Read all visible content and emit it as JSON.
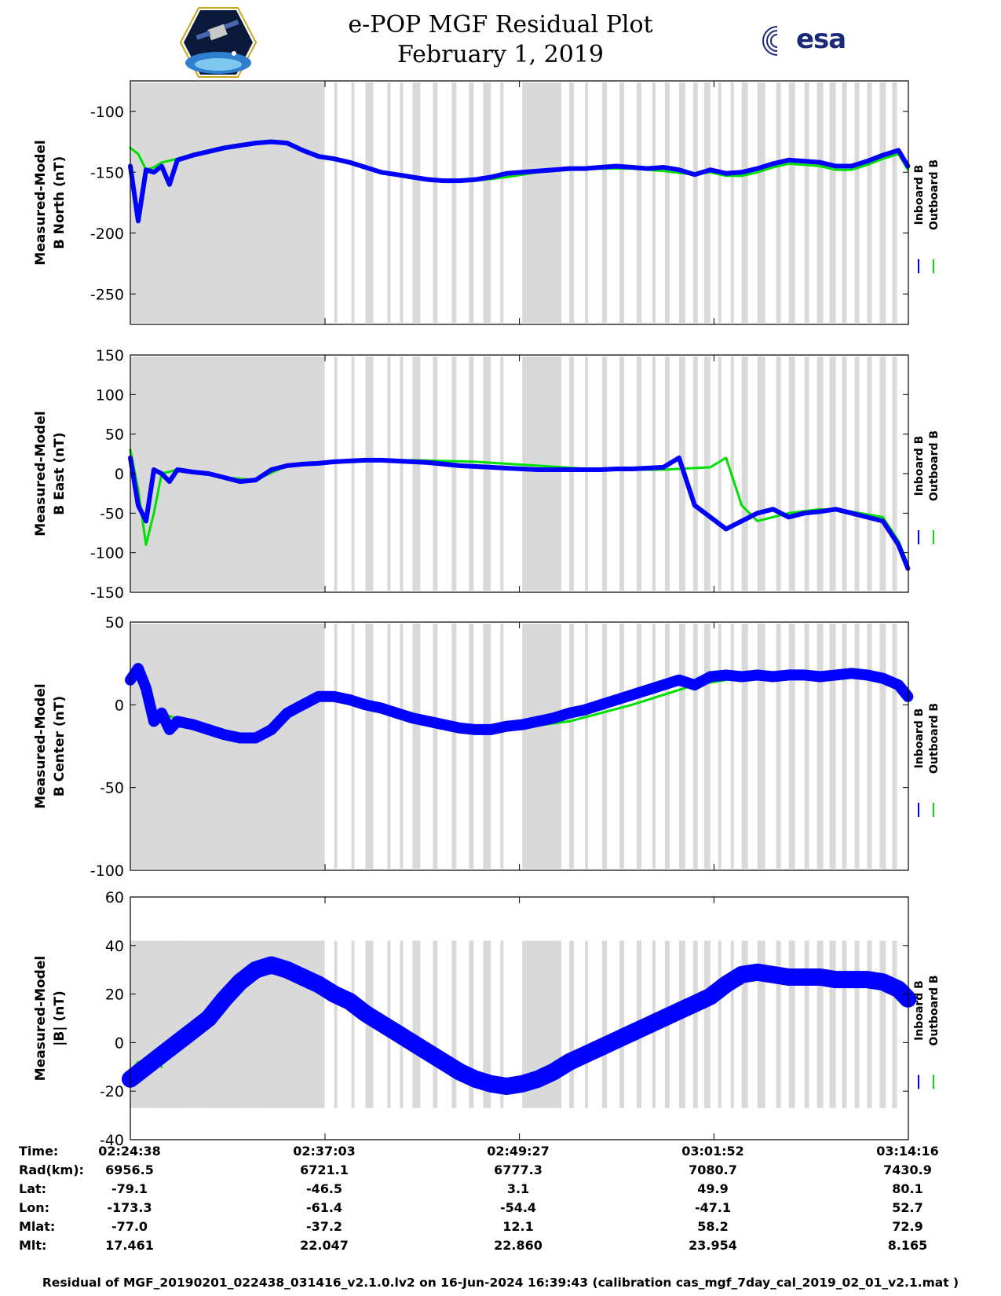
{
  "title": {
    "line1": "e-POP MGF Residual Plot",
    "line2": "February 1, 2019"
  },
  "logos": {
    "left": "cassiope-mission-logo",
    "right_text": "esa"
  },
  "colors": {
    "inboard": "#0000ff",
    "outboard": "#00e000",
    "shading": "#d9d9d9",
    "axis": "#000000"
  },
  "chart_data": [
    {
      "type": "line",
      "title": "",
      "ylabel_line1": "Measured-Model",
      "ylabel_line2": "B North (nT)",
      "ylim": [
        -275,
        -75
      ],
      "yticks": [
        -250,
        -200,
        -150,
        -100
      ],
      "ytick_labels": [
        "-250",
        "-200",
        "-150",
        "-100"
      ],
      "legend": [
        "Inboard B",
        "Outboard B"
      ],
      "series": [
        {
          "name": "Inboard B",
          "x": [
            0,
            0.5,
            1,
            1.5,
            2,
            2.5,
            3,
            4,
            5,
            6,
            7,
            8,
            9,
            10,
            11,
            12,
            13,
            14,
            15,
            16,
            17,
            18,
            19,
            20,
            21,
            22,
            23,
            24,
            25,
            26,
            27,
            28,
            29,
            30,
            31,
            32,
            33,
            34,
            35,
            36,
            37,
            38,
            39,
            40,
            41,
            42,
            43,
            44,
            45,
            46,
            47,
            48,
            49,
            49.6
          ],
          "y": [
            -145,
            -190,
            -148,
            -150,
            -145,
            -160,
            -140,
            -136,
            -133,
            -130,
            -128,
            -126,
            -125,
            -126,
            -132,
            -137,
            -139,
            -142,
            -146,
            -150,
            -152,
            -154,
            -156,
            -157,
            -157,
            -156,
            -154,
            -151,
            -150,
            -149,
            -148,
            -147,
            -147,
            -146,
            -145,
            -146,
            -147,
            -146,
            -148,
            -152,
            -148,
            -151,
            -150,
            -147,
            -143,
            -140,
            -141,
            -142,
            -145,
            -145,
            -141,
            -136,
            -132,
            -145
          ]
        },
        {
          "name": "Outboard B",
          "x": [
            0,
            0.5,
            1,
            1.5,
            2,
            3,
            4,
            5,
            6,
            7,
            8,
            9,
            10,
            12,
            14,
            16,
            18,
            20,
            22,
            24,
            26,
            28,
            30,
            32,
            34,
            36,
            37,
            38,
            39,
            40,
            41,
            42,
            43,
            44,
            45,
            46,
            47,
            48,
            49,
            49.6
          ],
          "y": [
            -130,
            -135,
            -148,
            -146,
            -142,
            -139,
            -135,
            -132,
            -129,
            -127,
            -126,
            -125,
            -126,
            -137,
            -142,
            -150,
            -154,
            -157,
            -157,
            -154,
            -150,
            -148,
            -147,
            -147,
            -149,
            -152,
            -150,
            -153,
            -153,
            -150,
            -146,
            -143,
            -144,
            -145,
            -148,
            -148,
            -144,
            -139,
            -135,
            -148
          ]
        }
      ]
    },
    {
      "type": "line",
      "title": "",
      "ylabel_line1": "Measured-Model",
      "ylabel_line2": "B East (nT)",
      "ylim": [
        -150,
        150
      ],
      "yticks": [
        -150,
        -100,
        -50,
        0,
        50,
        100,
        150
      ],
      "ytick_labels": [
        "-150",
        "-100",
        "-50",
        "0",
        "50",
        "100",
        "150"
      ],
      "legend": [
        "Inboard B",
        "Outboard B"
      ],
      "series": [
        {
          "name": "Inboard B",
          "x": [
            0,
            0.5,
            1,
            1.5,
            2,
            2.5,
            3,
            4,
            5,
            6,
            7,
            8,
            9,
            10,
            11,
            12,
            13,
            14,
            15,
            16,
            17,
            18,
            19,
            20,
            21,
            22,
            23,
            24,
            25,
            26,
            27,
            28,
            29,
            30,
            31,
            32,
            33,
            34,
            35,
            36,
            37,
            38,
            39,
            40,
            41,
            42,
            43,
            44,
            45,
            46,
            47,
            48,
            49,
            49.6
          ],
          "y": [
            20,
            -40,
            -60,
            5,
            0,
            -10,
            5,
            2,
            0,
            -5,
            -10,
            -8,
            5,
            10,
            12,
            13,
            15,
            16,
            17,
            17,
            16,
            15,
            14,
            12,
            10,
            9,
            8,
            7,
            6,
            5,
            5,
            5,
            5,
            5,
            6,
            6,
            7,
            8,
            20,
            -40,
            -55,
            -70,
            -60,
            -50,
            -45,
            -55,
            -50,
            -48,
            -45,
            -50,
            -55,
            -60,
            -90,
            -120
          ]
        },
        {
          "name": "Outboard B",
          "x": [
            0,
            0.5,
            1,
            1.5,
            2,
            3,
            4,
            6,
            8,
            10,
            14,
            18,
            22,
            26,
            30,
            34,
            37,
            38,
            39,
            40,
            42,
            44,
            46,
            48,
            49,
            49.6
          ],
          "y": [
            30,
            -20,
            -90,
            -50,
            0,
            5,
            2,
            -5,
            -8,
            10,
            15,
            17,
            15,
            10,
            5,
            5,
            8,
            20,
            -40,
            -60,
            -50,
            -45,
            -48,
            -55,
            -85,
            -115
          ]
        }
      ]
    },
    {
      "type": "line",
      "title": "",
      "ylabel_line1": "Measured-Model",
      "ylabel_line2": "B Center (nT)",
      "ylim": [
        -100,
        50
      ],
      "yticks": [
        -100,
        -50,
        0,
        50
      ],
      "ytick_labels": [
        "-100",
        "-50",
        "0",
        "50"
      ],
      "legend": [
        "Inboard B",
        "Outboard B"
      ],
      "series": [
        {
          "name": "Inboard B",
          "x": [
            0,
            0.5,
            1,
            1.5,
            2,
            2.5,
            3,
            4,
            5,
            6,
            7,
            8,
            9,
            10,
            11,
            12,
            13,
            14,
            15,
            16,
            17,
            18,
            19,
            20,
            21,
            22,
            23,
            24,
            25,
            26,
            27,
            28,
            29,
            30,
            31,
            32,
            33,
            34,
            35,
            36,
            37,
            38,
            39,
            40,
            41,
            42,
            43,
            44,
            45,
            46,
            47,
            48,
            49,
            49.6
          ],
          "y": [
            15,
            22,
            10,
            -10,
            -5,
            -15,
            -10,
            -12,
            -15,
            -18,
            -20,
            -20,
            -15,
            -5,
            0,
            5,
            5,
            3,
            0,
            -2,
            -5,
            -8,
            -10,
            -12,
            -14,
            -15,
            -15,
            -13,
            -12,
            -10,
            -8,
            -5,
            -3,
            0,
            3,
            6,
            9,
            12,
            15,
            12,
            17,
            18,
            17,
            18,
            17,
            18,
            18,
            17,
            18,
            19,
            18,
            16,
            12,
            5
          ]
        },
        {
          "name": "Outboard B",
          "x": [
            0,
            0.5,
            1,
            1.5,
            2,
            4,
            8,
            12,
            16,
            20,
            24,
            28,
            32,
            36,
            40,
            44,
            48,
            49.6
          ],
          "y": [
            18,
            22,
            15,
            -8,
            -5,
            -12,
            -20,
            5,
            0,
            -12,
            -15,
            -10,
            0,
            12,
            18,
            18,
            17,
            6
          ]
        }
      ]
    },
    {
      "type": "line",
      "title": "",
      "ylabel_line1": "Measured-Model",
      "ylabel_line2": "|B| (nT)",
      "ylim": [
        -40,
        60
      ],
      "yticks": [
        -40,
        -20,
        0,
        20,
        40,
        60
      ],
      "ytick_labels": [
        "-40",
        "-20",
        "0",
        "20",
        "40",
        "60"
      ],
      "legend": [
        "Inboard B",
        "Outboard B"
      ],
      "series": [
        {
          "name": "Inboard B",
          "x": [
            0,
            1,
            2,
            3,
            4,
            5,
            6,
            7,
            8,
            9,
            10,
            11,
            12,
            13,
            14,
            15,
            16,
            17,
            18,
            19,
            20,
            21,
            22,
            23,
            24,
            25,
            26,
            27,
            28,
            29,
            30,
            31,
            32,
            33,
            34,
            35,
            36,
            37,
            38,
            39,
            40,
            41,
            42,
            43,
            44,
            45,
            46,
            47,
            48,
            49,
            49.6
          ],
          "y": [
            -15,
            -10,
            -5,
            0,
            5,
            10,
            18,
            25,
            30,
            32,
            30,
            27,
            24,
            20,
            17,
            12,
            8,
            4,
            0,
            -4,
            -8,
            -12,
            -15,
            -17,
            -18,
            -17,
            -15,
            -12,
            -8,
            -5,
            -2,
            1,
            4,
            7,
            10,
            13,
            16,
            19,
            24,
            28,
            29,
            28,
            27,
            27,
            27,
            26,
            26,
            26,
            25,
            22,
            18
          ]
        },
        {
          "name": "Outboard B",
          "x": [
            0,
            0.5,
            1,
            1.5,
            2
          ],
          "y": [
            -12,
            -8,
            -14,
            -6,
            -10
          ]
        }
      ]
    }
  ],
  "xaxis": {
    "xlim": [
      0,
      49.63
    ],
    "unit": "minutes since 02:24:38",
    "ticks": [
      0,
      12.42,
      24.82,
      37.23,
      49.63
    ]
  },
  "shading_intervals": [
    [
      0,
      12.4
    ],
    [
      1.5,
      2.0
    ],
    [
      2.7,
      3.3
    ],
    [
      5.5,
      5.7
    ],
    [
      6.2,
      6.4
    ],
    [
      6.9,
      7.1
    ],
    [
      7.5,
      7.9
    ],
    [
      8.3,
      8.5
    ],
    [
      9.0,
      9.4
    ],
    [
      9.8,
      10.2
    ],
    [
      10.6,
      11.0
    ],
    [
      11.4,
      11.8
    ],
    [
      13.0,
      13.2
    ],
    [
      14.1,
      14.3
    ],
    [
      15.0,
      15.5
    ],
    [
      16.4,
      16.6
    ],
    [
      17.2,
      17.4
    ],
    [
      18.0,
      18.5
    ],
    [
      19.3,
      19.6
    ],
    [
      20.5,
      20.8
    ],
    [
      21.6,
      21.9
    ],
    [
      22.5,
      23.0
    ],
    [
      23.6,
      23.8
    ],
    [
      25.0,
      27.5
    ],
    [
      28.0,
      28.3
    ],
    [
      29.0,
      29.2
    ],
    [
      30.1,
      30.4
    ],
    [
      31.2,
      31.5
    ],
    [
      32.3,
      32.6
    ],
    [
      33.3,
      33.5
    ],
    [
      34.1,
      34.4
    ],
    [
      35.0,
      35.4
    ],
    [
      35.9,
      36.2
    ],
    [
      36.6,
      37.0
    ],
    [
      37.5,
      37.7
    ],
    [
      38.3,
      38.5
    ],
    [
      39.0,
      39.4
    ],
    [
      40.0,
      40.5
    ],
    [
      41.2,
      41.5
    ],
    [
      42.0,
      42.4
    ],
    [
      43.0,
      43.3
    ],
    [
      43.8,
      44.2
    ],
    [
      44.6,
      45.0
    ],
    [
      45.4,
      45.7
    ],
    [
      46.2,
      46.5
    ],
    [
      47.0,
      47.3
    ],
    [
      47.8,
      48.2
    ],
    [
      48.6,
      48.9
    ]
  ],
  "info_table": {
    "labels": [
      "Time:",
      "Rad(km):",
      "Lat:",
      "Lon:",
      "Mlat:",
      "Mlt:"
    ],
    "columns": [
      {
        "time": "02:24:38",
        "rad": "6956.5",
        "lat": "-79.1",
        "lon": "-173.3",
        "mlat": "-77.0",
        "mlt": "17.461"
      },
      {
        "time": "02:37:03",
        "rad": "6721.1",
        "lat": "-46.5",
        "lon": "-61.4",
        "mlat": "-37.2",
        "mlt": "22.047"
      },
      {
        "time": "02:49:27",
        "rad": "6777.3",
        "lat": "3.1",
        "lon": "-54.4",
        "mlat": "12.1",
        "mlt": "22.860"
      },
      {
        "time": "03:01:52",
        "rad": "7080.7",
        "lat": "49.9",
        "lon": "-47.1",
        "mlat": "58.2",
        "mlt": "23.954"
      },
      {
        "time": "03:14:16",
        "rad": "7430.9",
        "lat": "80.1",
        "lon": "52.7",
        "mlat": "72.9",
        "mlt": "8.165"
      }
    ]
  },
  "footer": "Residual of MGF_20190201_022438_031416_v2.1.0.lv2 on 16-Jun-2024 16:39:43 (calibration cas_mgf_7day_cal_2019_02_01_v2.1.mat )"
}
